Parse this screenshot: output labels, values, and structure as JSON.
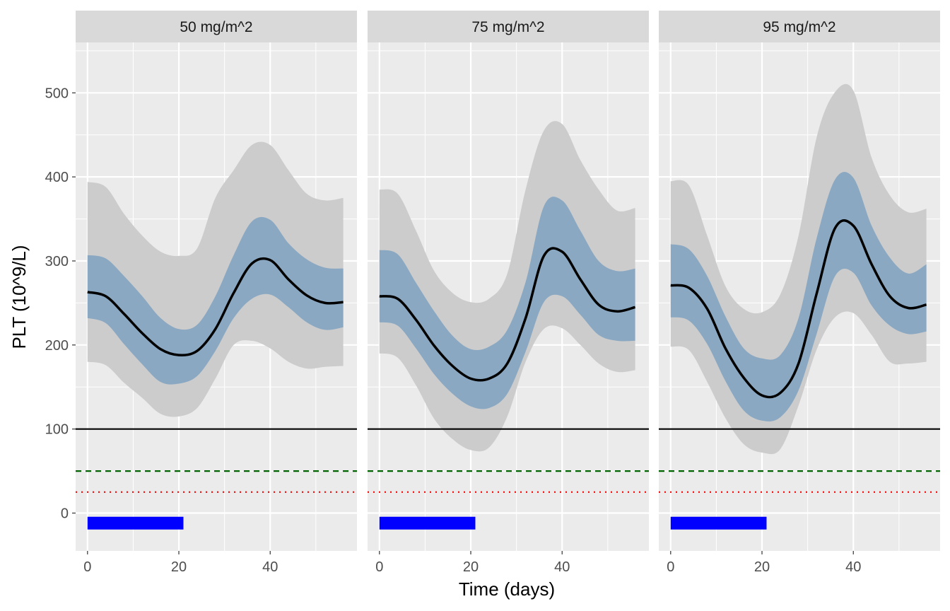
{
  "chart_data": {
    "type": "line",
    "xlabel": "Time (days)",
    "ylabel": "PLT (10^9/L)",
    "xlim": [
      -2.6,
      59
    ],
    "ylim": [
      -45,
      560
    ],
    "x_ticks": [
      0,
      20,
      40
    ],
    "y_ticks": [
      0,
      100,
      200,
      300,
      400,
      500
    ],
    "grid": true,
    "colors": {
      "panel_bg": "#EBEBEB",
      "strip_bg": "#D9D9D9",
      "outer_band": "#CCCCCC",
      "inner_band": "#8AA8C2",
      "median": "#000000",
      "threshold_100": "#000000",
      "threshold_50": "#006400",
      "threshold_25": "#FF0000",
      "dosing_bar": "#0000FF"
    },
    "reference_lines": [
      {
        "y": 100,
        "style": "solid",
        "color": "#000000"
      },
      {
        "y": 50,
        "style": "dashed",
        "color": "#006400"
      },
      {
        "y": 25,
        "style": "dotted",
        "color": "#FF0000"
      }
    ],
    "dosing_bar": {
      "x_start": 0,
      "x_end": 21,
      "y": -12
    },
    "x": [
      0,
      4,
      8,
      12,
      16,
      20,
      24,
      28,
      32,
      36,
      40,
      44,
      48,
      52,
      56
    ],
    "panels": [
      {
        "strip": "50 mg/m^2",
        "median": [
          263,
          258,
          237,
          214,
          195,
          188,
          193,
          219,
          262,
          297,
          301,
          278,
          259,
          250,
          251
        ],
        "inner_lower": [
          232,
          226,
          201,
          177,
          156,
          154,
          163,
          193,
          232,
          255,
          260,
          245,
          227,
          218,
          221
        ],
        "inner_upper": [
          307,
          303,
          282,
          258,
          232,
          219,
          224,
          258,
          307,
          347,
          349,
          321,
          302,
          292,
          291
        ],
        "outer_lower": [
          180,
          176,
          155,
          137,
          118,
          115,
          125,
          160,
          200,
          205,
          196,
          180,
          172,
          174,
          175
        ],
        "outer_upper": [
          394,
          388,
          356,
          330,
          311,
          306,
          315,
          375,
          408,
          438,
          438,
          408,
          380,
          372,
          375
        ]
      },
      {
        "strip": "75 mg/m^2",
        "median": [
          258,
          255,
          230,
          199,
          175,
          160,
          160,
          178,
          232,
          306,
          311,
          278,
          248,
          240,
          245
        ],
        "inner_lower": [
          227,
          223,
          196,
          165,
          142,
          127,
          125,
          142,
          192,
          251,
          258,
          236,
          212,
          205,
          205
        ],
        "inner_upper": [
          313,
          308,
          274,
          240,
          211,
          195,
          198,
          218,
          275,
          365,
          372,
          336,
          300,
          288,
          291
        ],
        "outer_lower": [
          190,
          185,
          152,
          112,
          88,
          75,
          78,
          115,
          180,
          219,
          220,
          200,
          178,
          168,
          170
        ],
        "outer_upper": [
          385,
          380,
          336,
          288,
          262,
          251,
          255,
          285,
          385,
          455,
          463,
          420,
          385,
          360,
          363
        ]
      },
      {
        "strip": "95 mg/m^2",
        "median": [
          271,
          268,
          243,
          196,
          161,
          140,
          143,
          178,
          262,
          339,
          342,
          296,
          258,
          244,
          248
        ],
        "inner_lower": [
          233,
          229,
          201,
          157,
          122,
          110,
          114,
          146,
          214,
          282,
          286,
          247,
          223,
          213,
          216
        ],
        "inner_upper": [
          320,
          314,
          282,
          234,
          196,
          184,
          188,
          232,
          328,
          397,
          399,
          342,
          304,
          285,
          296
        ],
        "outer_lower": [
          198,
          194,
          156,
          113,
          82,
          72,
          76,
          128,
          195,
          233,
          238,
          212,
          180,
          178,
          180
        ],
        "outer_upper": [
          395,
          390,
          330,
          270,
          243,
          239,
          260,
          330,
          448,
          501,
          503,
          423,
          378,
          358,
          362
        ]
      }
    ]
  }
}
